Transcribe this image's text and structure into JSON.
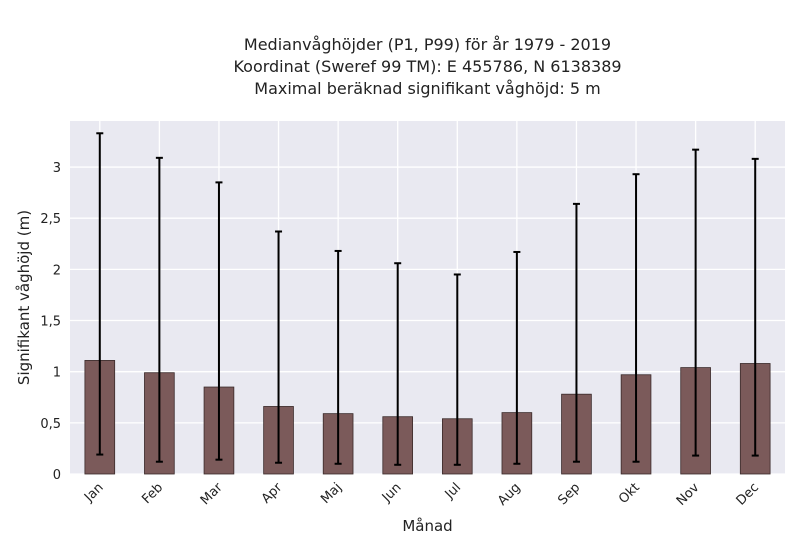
{
  "chart_data": {
    "type": "bar",
    "title_lines": [
      "Medianvåghöjder (P1, P99) för år 1979 - 2019",
      "Koordinat (Sweref 99 TM): E 455786, N 6138389",
      "Maximal beräknad signifikant våghöjd: 5 m"
    ],
    "xlabel": "Månad",
    "ylabel": "Signifikant våghöjd (m)",
    "categories": [
      "Jan",
      "Feb",
      "Mar",
      "Apr",
      "Maj",
      "Jun",
      "Jul",
      "Aug",
      "Sep",
      "Okt",
      "Nov",
      "Dec"
    ],
    "values": [
      1.11,
      0.99,
      0.85,
      0.66,
      0.59,
      0.56,
      0.54,
      0.6,
      0.78,
      0.97,
      1.04,
      1.08
    ],
    "p1": [
      0.19,
      0.12,
      0.14,
      0.11,
      0.1,
      0.09,
      0.09,
      0.1,
      0.12,
      0.12,
      0.18,
      0.18
    ],
    "p99": [
      3.33,
      3.09,
      2.85,
      2.37,
      2.18,
      2.06,
      1.95,
      2.17,
      2.64,
      2.93,
      3.17,
      3.08
    ],
    "ylim": [
      0,
      3.45
    ],
    "yticks": [
      0,
      0.5,
      1,
      1.5,
      2,
      2.5,
      3
    ],
    "ytick_labels": [
      "0",
      "0,5",
      "1",
      "1,5",
      "2",
      "2,5",
      "3"
    ],
    "grid": true,
    "colors": {
      "bar": "#7b5a5a",
      "bar_edge": "#3a2a2a",
      "plot_bg": "#e9e9f1",
      "grid": "#ffffff",
      "errorbar": "#000000"
    }
  }
}
